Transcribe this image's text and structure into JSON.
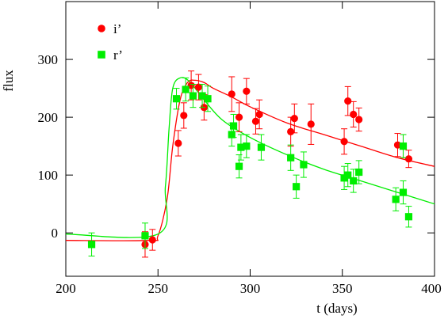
{
  "chart_data": {
    "type": "scatter",
    "title": "",
    "xlabel": "t (days)",
    "ylabel": "flux",
    "xlim": [
      200,
      400
    ],
    "ylim": [
      -75,
      400
    ],
    "x_ticks": [
      200,
      250,
      300,
      350,
      400
    ],
    "y_ticks": [
      0,
      100,
      200,
      300
    ],
    "grid": false,
    "legend_position": "top-left",
    "series": [
      {
        "name": "i’",
        "color": "#ff0000",
        "marker": "circle",
        "points": [
          {
            "x": 243,
            "y": -20,
            "err": 22
          },
          {
            "x": 247,
            "y": -12,
            "err": 18
          },
          {
            "x": 261,
            "y": 155,
            "err": 22
          },
          {
            "x": 264,
            "y": 203,
            "err": 22
          },
          {
            "x": 268,
            "y": 255,
            "err": 25
          },
          {
            "x": 272,
            "y": 252,
            "err": 22
          },
          {
            "x": 275,
            "y": 217,
            "err": 22
          },
          {
            "x": 290,
            "y": 240,
            "err": 30
          },
          {
            "x": 294,
            "y": 200,
            "err": 25
          },
          {
            "x": 298,
            "y": 245,
            "err": 22
          },
          {
            "x": 303,
            "y": 193,
            "err": 22
          },
          {
            "x": 305,
            "y": 205,
            "err": 25
          },
          {
            "x": 322,
            "y": 175,
            "err": 25
          },
          {
            "x": 324,
            "y": 198,
            "err": 25
          },
          {
            "x": 333,
            "y": 188,
            "err": 35
          },
          {
            "x": 351,
            "y": 158,
            "err": 22
          },
          {
            "x": 353,
            "y": 228,
            "err": 25
          },
          {
            "x": 356,
            "y": 205,
            "err": 22
          },
          {
            "x": 359,
            "y": 196,
            "err": 20
          },
          {
            "x": 380,
            "y": 152,
            "err": 20
          },
          {
            "x": 383,
            "y": 150,
            "err": 20
          },
          {
            "x": 386,
            "y": 128,
            "err": 15
          }
        ],
        "fit_curve": [
          {
            "x": 200,
            "y": -13
          },
          {
            "x": 245,
            "y": -13
          },
          {
            "x": 250,
            "y": -5
          },
          {
            "x": 255,
            "y": 60
          },
          {
            "x": 258,
            "y": 150
          },
          {
            "x": 262,
            "y": 230
          },
          {
            "x": 266,
            "y": 260
          },
          {
            "x": 270,
            "y": 264
          },
          {
            "x": 275,
            "y": 260
          },
          {
            "x": 280,
            "y": 250
          },
          {
            "x": 290,
            "y": 235
          },
          {
            "x": 300,
            "y": 218
          },
          {
            "x": 320,
            "y": 190
          },
          {
            "x": 340,
            "y": 170
          },
          {
            "x": 360,
            "y": 150
          },
          {
            "x": 380,
            "y": 130
          },
          {
            "x": 400,
            "y": 115
          }
        ]
      },
      {
        "name": "r’",
        "color": "#00ee00",
        "marker": "square",
        "points": [
          {
            "x": 214,
            "y": -20,
            "err": 20
          },
          {
            "x": 243,
            "y": -5,
            "err": 22
          },
          {
            "x": 260,
            "y": 232,
            "err": 18
          },
          {
            "x": 265,
            "y": 248,
            "err": 20
          },
          {
            "x": 269,
            "y": 237,
            "err": 20
          },
          {
            "x": 274,
            "y": 237,
            "err": 20
          },
          {
            "x": 277,
            "y": 232,
            "err": 22
          },
          {
            "x": 290,
            "y": 170,
            "err": 20
          },
          {
            "x": 291,
            "y": 185,
            "err": 20
          },
          {
            "x": 294,
            "y": 115,
            "err": 20
          },
          {
            "x": 295,
            "y": 148,
            "err": 22
          },
          {
            "x": 298,
            "y": 150,
            "err": 20
          },
          {
            "x": 306,
            "y": 148,
            "err": 22
          },
          {
            "x": 322,
            "y": 130,
            "err": 22
          },
          {
            "x": 325,
            "y": 80,
            "err": 20
          },
          {
            "x": 329,
            "y": 118,
            "err": 22
          },
          {
            "x": 351,
            "y": 95,
            "err": 20
          },
          {
            "x": 353,
            "y": 100,
            "err": 20
          },
          {
            "x": 356,
            "y": 90,
            "err": 20
          },
          {
            "x": 359,
            "y": 105,
            "err": 20
          },
          {
            "x": 379,
            "y": 58,
            "err": 20
          },
          {
            "x": 383,
            "y": 70,
            "err": 20
          },
          {
            "x": 383,
            "y": 150,
            "err": 20
          },
          {
            "x": 386,
            "y": 28,
            "err": 18
          }
        ],
        "fit_curve": [
          {
            "x": 200,
            "y": -2
          },
          {
            "x": 250,
            "y": -2
          },
          {
            "x": 254,
            "y": 80
          },
          {
            "x": 256,
            "y": 180
          },
          {
            "x": 258,
            "y": 250
          },
          {
            "x": 262,
            "y": 268
          },
          {
            "x": 267,
            "y": 262
          },
          {
            "x": 275,
            "y": 230
          },
          {
            "x": 285,
            "y": 195
          },
          {
            "x": 300,
            "y": 165
          },
          {
            "x": 320,
            "y": 135
          },
          {
            "x": 340,
            "y": 110
          },
          {
            "x": 360,
            "y": 90
          },
          {
            "x": 380,
            "y": 70
          },
          {
            "x": 400,
            "y": 50
          }
        ]
      }
    ]
  }
}
